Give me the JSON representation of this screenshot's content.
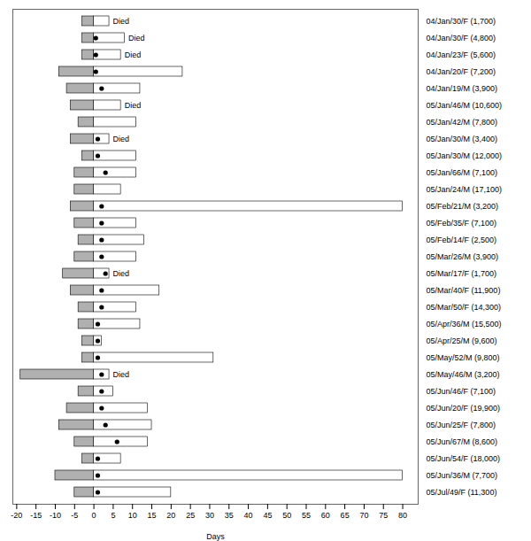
{
  "chart_data": {
    "type": "bar",
    "orientation": "horizontal",
    "xlabel": "Days",
    "categories": [
      "04/Jan/30/F (1,700)",
      "04/Jan/30/F (4,800)",
      "04/Jan/23/F (5,600)",
      "04/Jan/20/F (7,200)",
      "04/Jan/19/M (3,900)",
      "05/Jan/46/M (10,600)",
      "05/Jan/42/M (7,800)",
      "05/Jan/30/M (3,400)",
      "05/Jan/30/M (12,000)",
      "05/Jan/66/M (7,100)",
      "05/Jan/24/M (17,100)",
      "05/Feb/21/M (3,200)",
      "05/Feb/35/F (7,100)",
      "05/Feb/14/F (2,500)",
      "05/Mar/26/M (3,900)",
      "05/Mar/17/F (1,700)",
      "05/Mar/40/F (11,900)",
      "05/Mar/50/F (14,300)",
      "05/Apr/36/M (15,500)",
      "05/Apr/25/M (9,600)",
      "05/May/52/M (9,800)",
      "05/May/46/M (3,200)",
      "05/Jun/46/F (7,100)",
      "05/Jun/20/F (19,900)",
      "05/Jun/25/F (7,800)",
      "05/Jun/67/M (8,600)",
      "05/Jun/54/F (18,000)",
      "05/Jun/36/M (7,700)",
      "05/Jul/49/F (11,300)"
    ],
    "series": [
      {
        "type": "bar",
        "color": "#b0b0b0",
        "values": [
          -3,
          -3,
          -3,
          -9,
          -7,
          -6,
          -4,
          -6,
          -3,
          -5,
          -5,
          -6,
          -5,
          -4,
          -5,
          -8,
          -6,
          -4,
          -4,
          -3,
          -3,
          -19,
          -4,
          -7,
          -9,
          -5,
          -3,
          -10,
          -5
        ]
      },
      {
        "type": "bar",
        "color": "#ffffff",
        "values": [
          4,
          8,
          7,
          23,
          12,
          7,
          11,
          4,
          11,
          11,
          7,
          80,
          11,
          13,
          11,
          4,
          17,
          11,
          12,
          2,
          31,
          4,
          5,
          14,
          15,
          14,
          7,
          80,
          20
        ]
      },
      {
        "type": "scatter",
        "color": "#000000",
        "marker": "circle",
        "values": [
          null,
          0.5,
          0.5,
          0.5,
          2,
          null,
          null,
          1,
          1,
          3,
          null,
          2,
          2,
          2,
          2,
          3,
          2,
          2,
          1,
          1,
          1,
          2,
          2,
          2,
          3,
          6,
          1,
          1,
          1
        ]
      }
    ],
    "annotations": [
      {
        "text": "Died",
        "category": "04/Jan/30/F (1,700)"
      },
      {
        "text": "Died",
        "category": "04/Jan/30/F (4,800)"
      },
      {
        "text": "Died",
        "category": "04/Jan/23/F (5,600)"
      },
      {
        "text": "Died",
        "category": "05/Jan/46/M (10,600)"
      },
      {
        "text": "Died",
        "category": "05/Jan/30/M (3,400)"
      },
      {
        "text": "Died",
        "category": "05/Mar/17/F (1,700)"
      },
      {
        "text": "Died",
        "category": "05/May/46/M (3,200)"
      }
    ],
    "xlim": [
      -21,
      84
    ],
    "xticks": [
      -20,
      -15,
      -10,
      -5,
      0,
      5,
      10,
      15,
      20,
      25,
      30,
      35,
      40,
      45,
      50,
      55,
      60,
      65,
      70,
      75,
      80
    ],
    "grid": false
  }
}
